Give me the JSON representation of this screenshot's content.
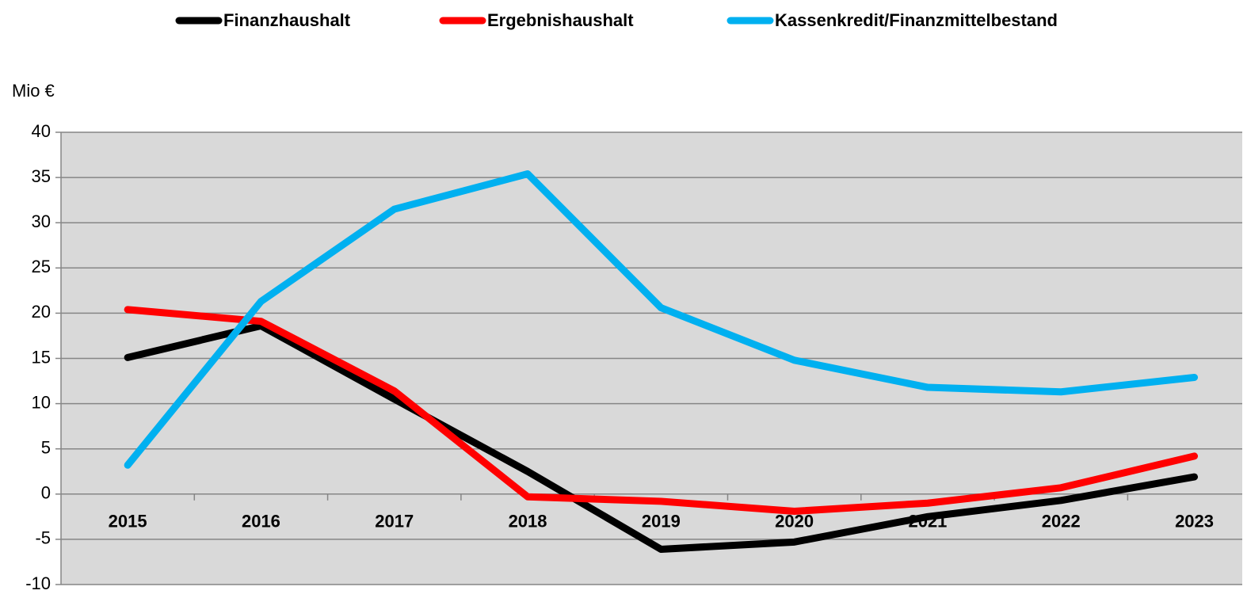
{
  "chart_data": {
    "type": "line",
    "y_label": "Mio €",
    "categories": [
      "2015",
      "2016",
      "2017",
      "2018",
      "2019",
      "2020",
      "2021",
      "2022",
      "2023"
    ],
    "series": [
      {
        "name": "Finanzhaushalt",
        "color": "#000000",
        "values": [
          15.1,
          18.6,
          10.5,
          2.5,
          -6.1,
          -5.3,
          -2.5,
          -0.7,
          1.9
        ]
      },
      {
        "name": "Ergebnishaushalt",
        "color": "#ff0000",
        "values": [
          20.4,
          19.1,
          11.4,
          -0.3,
          -0.8,
          -1.9,
          -1.0,
          0.7,
          4.2
        ]
      },
      {
        "name": "Kassenkredit/Finanzmittelbestand",
        "color": "#00b0f0",
        "values": [
          3.2,
          21.3,
          31.5,
          35.4,
          20.6,
          14.8,
          11.8,
          11.3,
          12.9
        ]
      }
    ],
    "ylim": [
      -10,
      40
    ],
    "yticks": [
      -10,
      -5,
      0,
      5,
      10,
      15,
      20,
      25,
      30,
      35,
      40
    ],
    "grid": true,
    "legend": "top"
  }
}
